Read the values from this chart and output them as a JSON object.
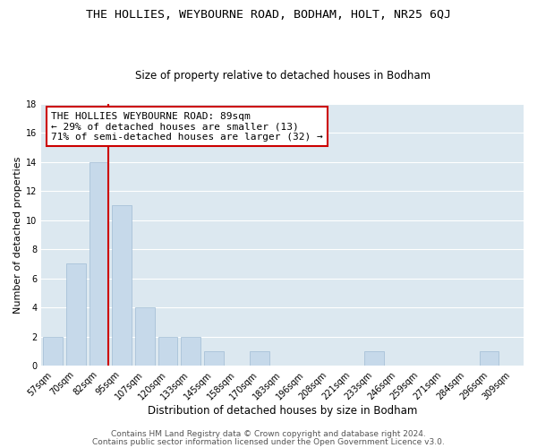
{
  "title": "THE HOLLIES, WEYBOURNE ROAD, BODHAM, HOLT, NR25 6QJ",
  "subtitle": "Size of property relative to detached houses in Bodham",
  "xlabel": "Distribution of detached houses by size in Bodham",
  "ylabel": "Number of detached properties",
  "bar_labels": [
    "57sqm",
    "70sqm",
    "82sqm",
    "95sqm",
    "107sqm",
    "120sqm",
    "133sqm",
    "145sqm",
    "158sqm",
    "170sqm",
    "183sqm",
    "196sqm",
    "208sqm",
    "221sqm",
    "233sqm",
    "246sqm",
    "259sqm",
    "271sqm",
    "284sqm",
    "296sqm",
    "309sqm"
  ],
  "bar_heights": [
    2,
    7,
    14,
    11,
    4,
    2,
    2,
    1,
    0,
    1,
    0,
    0,
    0,
    0,
    1,
    0,
    0,
    0,
    0,
    1,
    0
  ],
  "bar_color": "#c6d9ea",
  "bar_edge_color": "#a0bcd4",
  "grid_color": "#ffffff",
  "plot_bg_color": "#dce8f0",
  "fig_bg_color": "#ffffff",
  "vline_color": "#cc0000",
  "annotation_text": "THE HOLLIES WEYBOURNE ROAD: 89sqm\n← 29% of detached houses are smaller (13)\n71% of semi-detached houses are larger (32) →",
  "annotation_box_color": "#ffffff",
  "annotation_box_edge": "#cc0000",
  "footer1": "Contains HM Land Registry data © Crown copyright and database right 2024.",
  "footer2": "Contains public sector information licensed under the Open Government Licence v3.0.",
  "ylim": [
    0,
    18
  ],
  "title_fontsize": 9.5,
  "subtitle_fontsize": 8.5,
  "xlabel_fontsize": 8.5,
  "ylabel_fontsize": 8.0,
  "tick_fontsize": 7.0,
  "annotation_fontsize": 8.0,
  "footer_fontsize": 6.5
}
